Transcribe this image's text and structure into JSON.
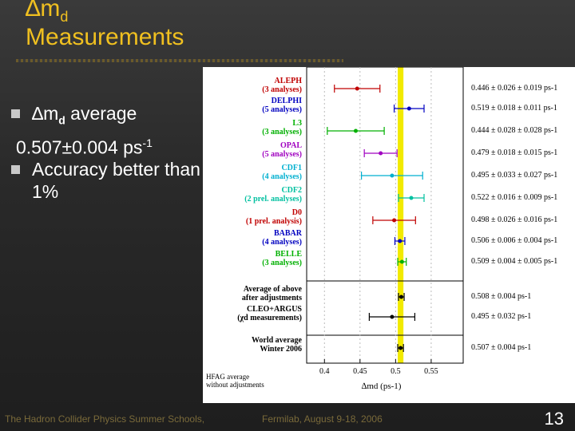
{
  "slide": {
    "title_line1_symbol": "∆m",
    "title_line1_sub": "d",
    "title_line2": "Measurements",
    "bullet1_prefix": "∆m",
    "bullet1_sub": "d",
    "bullet1_suffix": " average",
    "value_line": "0.507±0.004 ps",
    "value_exp": "-1",
    "bullet2": "Accuracy better than 1%",
    "footer_left": "The Hadron Collider Physics Summer Schools,",
    "footer_right": "Fermilab, August 9-18, 2006",
    "page_number": "13"
  },
  "colors": {
    "title": "#f0c020",
    "band": "#f2ea00",
    "aleph": "#c00000",
    "delphi": "#0000c0",
    "l3": "#00b000",
    "opal": "#a000c0",
    "cdf1": "#00b0d0",
    "cdf2": "#00c0a0",
    "d0": "#c00000",
    "babar": "#0000c0",
    "belle": "#00b000",
    "black": "#000000"
  },
  "chart_data": {
    "type": "scatter",
    "xlabel": "∆md (ps-1)",
    "xlim": [
      0.375,
      0.595
    ],
    "xticks": [
      "0.4",
      "0.45",
      "0.5",
      "0.55"
    ],
    "band": [
      0.503,
      0.511
    ],
    "measurements": [
      {
        "name": "ALEPH",
        "sub": "(3 analyses)",
        "value": 0.446,
        "err": 0.032,
        "text": "0.446 ± 0.026 ± 0.019 ps-1",
        "color": "#c00000"
      },
      {
        "name": "DELPHI",
        "sub": "(5 analyses)",
        "value": 0.519,
        "err": 0.021,
        "text": "0.519 ± 0.018 ± 0.011 ps-1",
        "color": "#0000c0"
      },
      {
        "name": "L3",
        "sub": "(3 analyses)",
        "value": 0.444,
        "err": 0.04,
        "text": "0.444 ± 0.028 ± 0.028 ps-1",
        "color": "#00b000"
      },
      {
        "name": "OPAL",
        "sub": "(5 analyses)",
        "value": 0.479,
        "err": 0.023,
        "text": "0.479 ± 0.018 ± 0.015 ps-1",
        "color": "#a000c0"
      },
      {
        "name": "CDF1",
        "sub": "(4 analyses)",
        "value": 0.495,
        "err": 0.043,
        "text": "0.495 ± 0.033 ± 0.027 ps-1",
        "color": "#00b0d0"
      },
      {
        "name": "CDF2",
        "sub": "(2 prel. analyses)",
        "value": 0.522,
        "err": 0.018,
        "text": "0.522 ± 0.016 ± 0.009 ps-1",
        "color": "#00c0a0"
      },
      {
        "name": "D0",
        "sub": "(1 prel. analysis)",
        "value": 0.498,
        "err": 0.03,
        "text": "0.498 ± 0.026 ± 0.016 ps-1",
        "color": "#c00000"
      },
      {
        "name": "BABAR",
        "sub": "(4 analyses)",
        "value": 0.506,
        "err": 0.007,
        "text": "0.506 ± 0.006 ± 0.004 ps-1",
        "color": "#0000c0"
      },
      {
        "name": "BELLE",
        "sub": "(3 analyses)",
        "value": 0.509,
        "err": 0.006,
        "text": "0.509 ± 0.004 ± 0.005 ps-1",
        "color": "#00b000"
      },
      {
        "name": "Average of above",
        "sub": "after adjustments",
        "value": 0.508,
        "err": 0.004,
        "text": "0.508 ± 0.004 ps-1",
        "color": "#000000"
      },
      {
        "name": "CLEO+ARGUS",
        "sub": "(χd measurements)",
        "value": 0.495,
        "err": 0.032,
        "text": "0.495 ± 0.032 ps-1",
        "color": "#000000"
      },
      {
        "name": "World average",
        "sub": "Winter 2006",
        "value": 0.507,
        "err": 0.004,
        "text": "0.507 ± 0.004 ps-1",
        "color": "#000000"
      }
    ],
    "footnote_line1": "HFAG average",
    "footnote_line2": "without adjustments"
  }
}
